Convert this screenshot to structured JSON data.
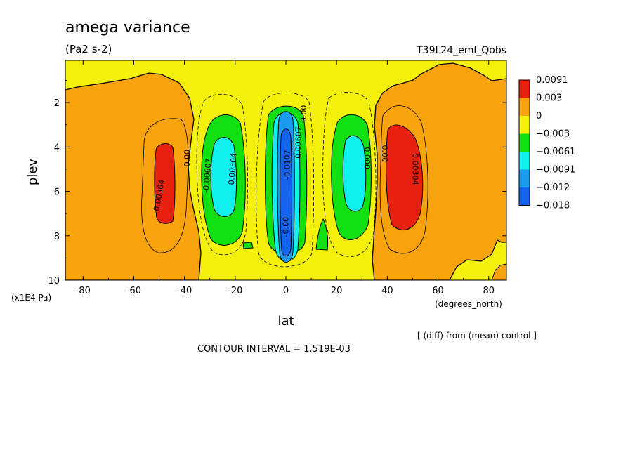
{
  "chart_data": {
    "type": "contour",
    "title": "amega variance",
    "subtitle": "(Pa2 s-2)",
    "run_label": "T39L24_eml_Qobs",
    "xlabel": "lat",
    "xunit": "(degrees_north)",
    "ylabel": "plev",
    "yunit": "(x1E4 Pa)",
    "xlim": [
      -87,
      87
    ],
    "ylim": [
      10,
      0.1
    ],
    "xticks": [
      "-80",
      "-60",
      "-40",
      "-20",
      "0",
      "20",
      "40",
      "60",
      "80"
    ],
    "yticks": [
      "2",
      "4",
      "6",
      "8",
      "10"
    ],
    "footnote": "[ (diff) from (mean) control ]",
    "contour_interval": "CONTOUR INTERVAL = 1.519E-03",
    "legend_levels": [
      {
        "label": "0.0091",
        "color": "#e8200e"
      },
      {
        "label": "0.003",
        "color": "#f9a30c"
      },
      {
        "label": "0",
        "color": "#f5f00a"
      },
      {
        "label": "−0.003",
        "color": "#10e010"
      },
      {
        "label": "−0.0061",
        "color": "#10f0f0"
      },
      {
        "label": "−0.0091",
        "color": "#1a9bf0"
      },
      {
        "label": "−0.012",
        "color": "#1464f0"
      },
      {
        "label": "−0.018",
        "color": null
      }
    ],
    "features": [
      {
        "kind": "positive-max",
        "lat": -48,
        "plev": 5.5,
        "label": "0.00304"
      },
      {
        "kind": "positive-max",
        "lat": 48,
        "plev": 5.3,
        "label": "0.00304"
      },
      {
        "kind": "negative-min",
        "lat": -29,
        "plev": 5.2,
        "label": "-0.00607"
      },
      {
        "kind": "negative-min",
        "lat": 29,
        "plev": 5.0,
        "label": "0.000"
      },
      {
        "kind": "negative-min",
        "lat": 0,
        "plev": 5.5,
        "label": "-0.0107"
      }
    ],
    "contour_labels": [
      {
        "text": "0.00304",
        "lat": -49,
        "plev": 6.2,
        "angle": -80
      },
      {
        "text": "0.00",
        "lat": -38,
        "plev": 4.5,
        "angle": -90
      },
      {
        "text": "-0.00607",
        "lat": -30,
        "plev": 5.3,
        "angle": -85
      },
      {
        "text": "0.00304",
        "lat": -20,
        "plev": 5.0,
        "angle": -85
      },
      {
        "text": "0.00",
        "lat": 38,
        "plev": 4.3,
        "angle": 90
      },
      {
        "text": "0.000",
        "lat": 31,
        "plev": 4.5,
        "angle": 90
      },
      {
        "text": "0.00304",
        "lat": 50,
        "plev": 5.0,
        "angle": 90
      },
      {
        "text": "-0.0107",
        "lat": 1.5,
        "plev": 4.8,
        "angle": -90
      },
      {
        "text": "0.00607",
        "lat": 6,
        "plev": 3.8,
        "angle": -90
      },
      {
        "text": "0.00",
        "lat": 8,
        "plev": 2.5,
        "angle": -90
      },
      {
        "text": "-0.00",
        "lat": 1,
        "plev": 7.6,
        "angle": -90
      }
    ]
  }
}
